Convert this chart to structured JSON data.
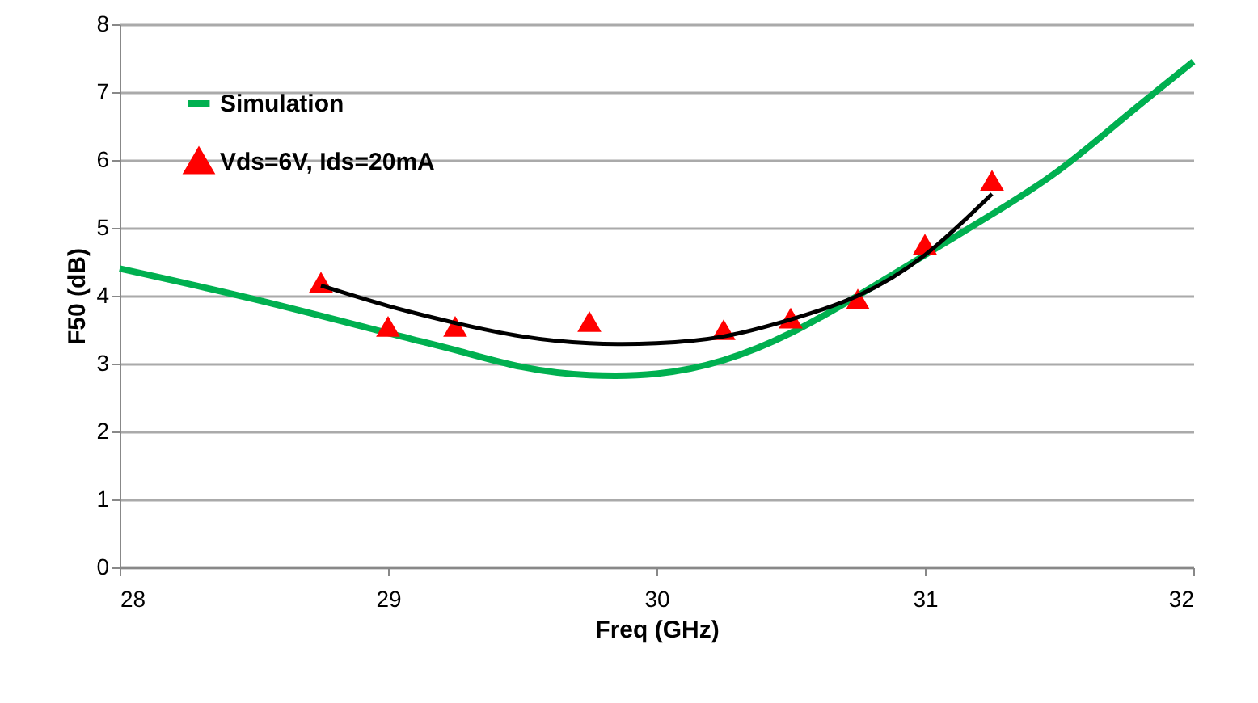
{
  "chart_data": {
    "type": "line",
    "xlabel": "Freq (GHz)",
    "ylabel": "F50 (dB)",
    "xlim": [
      28,
      32
    ],
    "xticks": [
      {
        "value": 28,
        "label": "28"
      },
      {
        "value": 29,
        "label": "29"
      },
      {
        "value": 30,
        "label": "30"
      },
      {
        "value": 31,
        "label": "31"
      },
      {
        "value": 32,
        "label": "32"
      }
    ],
    "ylim": [
      0,
      8
    ],
    "yticks": [
      0,
      1,
      2,
      3,
      4,
      5,
      6,
      7,
      8
    ],
    "grid": "y",
    "legend": "top left",
    "series": [
      {
        "name": "Simulation",
        "color": "#00b050",
        "marker": "none",
        "x": [
          28,
          28.5,
          29,
          29.25,
          29.5,
          29.75,
          30,
          30.25,
          30.5,
          30.75,
          31,
          31.25,
          31.5,
          31.75,
          32
        ],
        "values": [
          4.4,
          3.95,
          3.45,
          3.2,
          2.95,
          2.83,
          2.85,
          3.05,
          3.45,
          4.0,
          4.6,
          5.2,
          5.85,
          6.65,
          7.45
        ]
      },
      {
        "name": "Vds=6V, Ids=20mA",
        "type": "scatter",
        "color": "#ff0000",
        "marker": "triangle",
        "x": [
          28.75,
          29,
          29.25,
          29.75,
          30.25,
          30.5,
          30.75,
          31,
          31.25
        ],
        "values": [
          4.2,
          3.55,
          3.55,
          3.62,
          3.5,
          3.67,
          3.95,
          4.76,
          5.7
        ]
      },
      {
        "color": "#000000",
        "marker": "none",
        "x": [
          28.75,
          29,
          29.25,
          29.5,
          29.75,
          30,
          30.25,
          30.5,
          30.75,
          31,
          31.25
        ],
        "values": [
          4.15,
          3.85,
          3.6,
          3.4,
          3.3,
          3.3,
          3.4,
          3.65,
          4.0,
          4.6,
          5.5
        ]
      }
    ]
  }
}
